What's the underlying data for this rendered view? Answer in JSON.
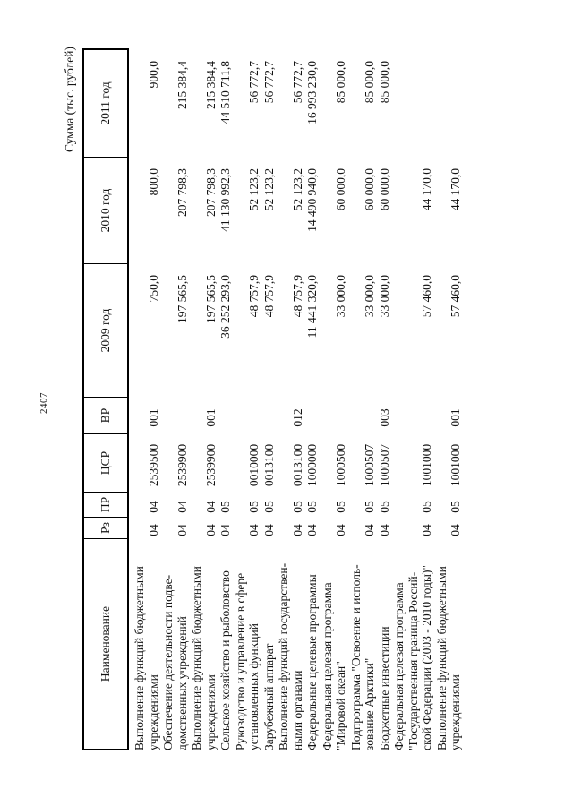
{
  "page": {
    "number": "2407",
    "units_label": "Сумма (тыс. рублей)"
  },
  "table": {
    "headers": {
      "name": "Наименование",
      "rz": "Рз",
      "pr": "ПР",
      "csr": "ЦСР",
      "vr": "ВР",
      "y2009": "2009 год",
      "y2010": "2010 год",
      "y2011": "2011 год"
    },
    "rows": [
      {
        "name_lines": [
          "Выполнение функций бюджетными",
          "учреждениями"
        ],
        "rz": "04",
        "pr": "04",
        "csr": "2539500",
        "vr": "001",
        "y2009": "750,0",
        "y2010": "800,0",
        "y2011": "900,0"
      },
      {
        "name_lines": [
          "Обеспечение деятельности подве-",
          "домственных учреждений"
        ],
        "rz": "04",
        "pr": "04",
        "csr": "2539900",
        "vr": "",
        "y2009": "197 565,5",
        "y2010": "207 798,3",
        "y2011": "215 384,4"
      },
      {
        "name_lines": [
          "Выполнение функций бюджетными",
          "учреждениями"
        ],
        "rz": "04",
        "pr": "04",
        "csr": "2539900",
        "vr": "001",
        "y2009": "197 565,5",
        "y2010": "207 798,3",
        "y2011": "215 384,4"
      },
      {
        "name_lines": [
          "Сельское хозяйство и рыболовство"
        ],
        "rz": "04",
        "pr": "05",
        "csr": "",
        "vr": "",
        "y2009": "36 252 293,0",
        "y2010": "41 130 992,3",
        "y2011": "44 510 711,8"
      },
      {
        "name_lines": [
          "Руководство и управление в сфере",
          "установленных функций"
        ],
        "rz": "04",
        "pr": "05",
        "csr": "0010000",
        "vr": "",
        "y2009": "48 757,9",
        "y2010": "52 123,2",
        "y2011": "56 772,7"
      },
      {
        "name_lines": [
          "Зарубежный аппарат"
        ],
        "rz": "04",
        "pr": "05",
        "csr": "0013100",
        "vr": "",
        "y2009": "48 757,9",
        "y2010": "52 123,2",
        "y2011": "56 772,7"
      },
      {
        "name_lines": [
          "Выполнение функций государствен-",
          "ными органами"
        ],
        "rz": "04",
        "pr": "05",
        "csr": "0013100",
        "vr": "012",
        "y2009": "48 757,9",
        "y2010": "52 123,2",
        "y2011": "56 772,7"
      },
      {
        "name_lines": [
          "Федеральные целевые программы"
        ],
        "rz": "04",
        "pr": "05",
        "csr": "1000000",
        "vr": "",
        "y2009": "11 441 320,0",
        "y2010": "14 490 940,0",
        "y2011": "16 993 230,0"
      },
      {
        "name_lines": [
          "Федеральная целевая программа",
          "\"Мировой океан\""
        ],
        "rz": "04",
        "pr": "05",
        "csr": "1000500",
        "vr": "",
        "y2009": "33 000,0",
        "y2010": "60 000,0",
        "y2011": "85 000,0"
      },
      {
        "name_lines": [
          "Подпрограмма \"Освоение и исполь-",
          "зование Арктики\""
        ],
        "rz": "04",
        "pr": "05",
        "csr": "1000507",
        "vr": "",
        "y2009": "33 000,0",
        "y2010": "60 000,0",
        "y2011": "85 000,0"
      },
      {
        "name_lines": [
          "Бюджетные инвестиции"
        ],
        "rz": "04",
        "pr": "05",
        "csr": "1000507",
        "vr": "003",
        "y2009": "33 000,0",
        "y2010": "60 000,0",
        "y2011": "85 000,0"
      },
      {
        "name_lines": [
          "Федеральная целевая программа",
          "\"Государственная граница Россий-",
          "ской Федерации (2003 - 2010 годы)\""
        ],
        "rz": "04",
        "pr": "05",
        "csr": "1001000",
        "vr": "",
        "y2009": "57 460,0",
        "y2010": "44 170,0",
        "y2011": ""
      },
      {
        "name_lines": [
          "Выполнение функций бюджетными",
          "учреждениями"
        ],
        "rz": "04",
        "pr": "05",
        "csr": "1001000",
        "vr": "001",
        "y2009": "57 460,0",
        "y2010": "44 170,0",
        "y2011": ""
      }
    ]
  }
}
